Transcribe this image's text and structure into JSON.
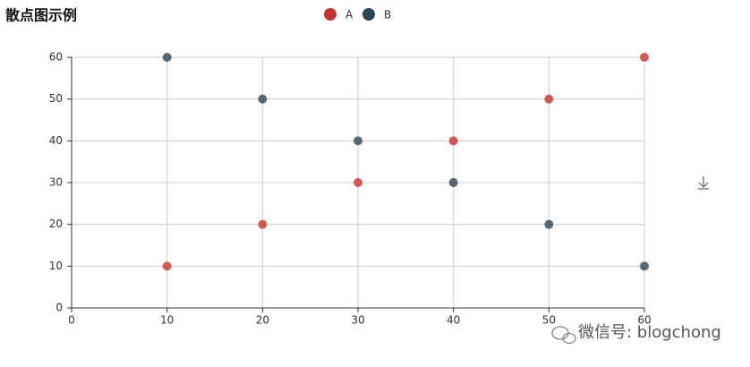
{
  "chart_data": {
    "type": "scatter",
    "title": "散点图示例",
    "x": [
      10,
      20,
      30,
      40,
      50,
      60
    ],
    "series": [
      {
        "name": "A",
        "color": "#c23531",
        "values": [
          10,
          20,
          30,
          40,
          50,
          60
        ]
      },
      {
        "name": "B",
        "color": "#2f4554",
        "values": [
          60,
          50,
          40,
          30,
          20,
          10
        ]
      }
    ],
    "xlim": [
      0,
      60
    ],
    "xticks": [
      0,
      10,
      20,
      30,
      40,
      50,
      60
    ],
    "ylim": [
      0,
      60
    ],
    "yticks": [
      0,
      10,
      20,
      30,
      40,
      50,
      60
    ],
    "grid": true,
    "legend": "top",
    "watermark": "微信号: blogchong"
  }
}
